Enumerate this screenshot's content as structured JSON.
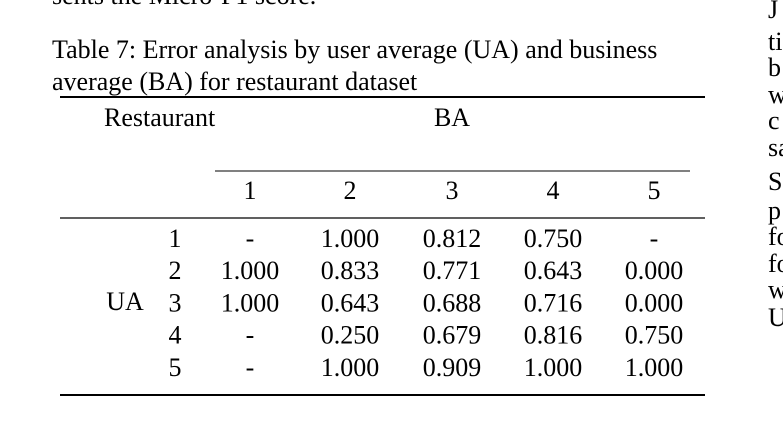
{
  "previous_text": "sents the Micro-F1 score.",
  "caption_lines": [
    "Table 7: Error analysis by user average (UA) and business",
    "average (BA) for restaurant dataset"
  ],
  "table": {
    "corner_header": "Restaurant",
    "column_group_header": "BA",
    "columns": [
      "1",
      "2",
      "3",
      "4",
      "5"
    ],
    "row_group_header": "UA",
    "rows": [
      {
        "label": "1",
        "cells": [
          "-",
          "1.000",
          "0.812",
          "0.750",
          "-"
        ]
      },
      {
        "label": "2",
        "cells": [
          "1.000",
          "0.833",
          "0.771",
          "0.643",
          "0.000"
        ]
      },
      {
        "label": "3",
        "cells": [
          "1.000",
          "0.643",
          "0.688",
          "0.716",
          "0.000"
        ]
      },
      {
        "label": "4",
        "cells": [
          "-",
          "0.250",
          "0.679",
          "0.816",
          "0.750"
        ]
      },
      {
        "label": "5",
        "cells": [
          "-",
          "1.000",
          "0.909",
          "1.000",
          "1.000"
        ]
      }
    ]
  },
  "right_column_fragments": [
    "J",
    "ti",
    "b",
    "w",
    "c",
    "sa",
    "S",
    "p",
    "fo",
    "fo",
    "w",
    "U"
  ]
}
